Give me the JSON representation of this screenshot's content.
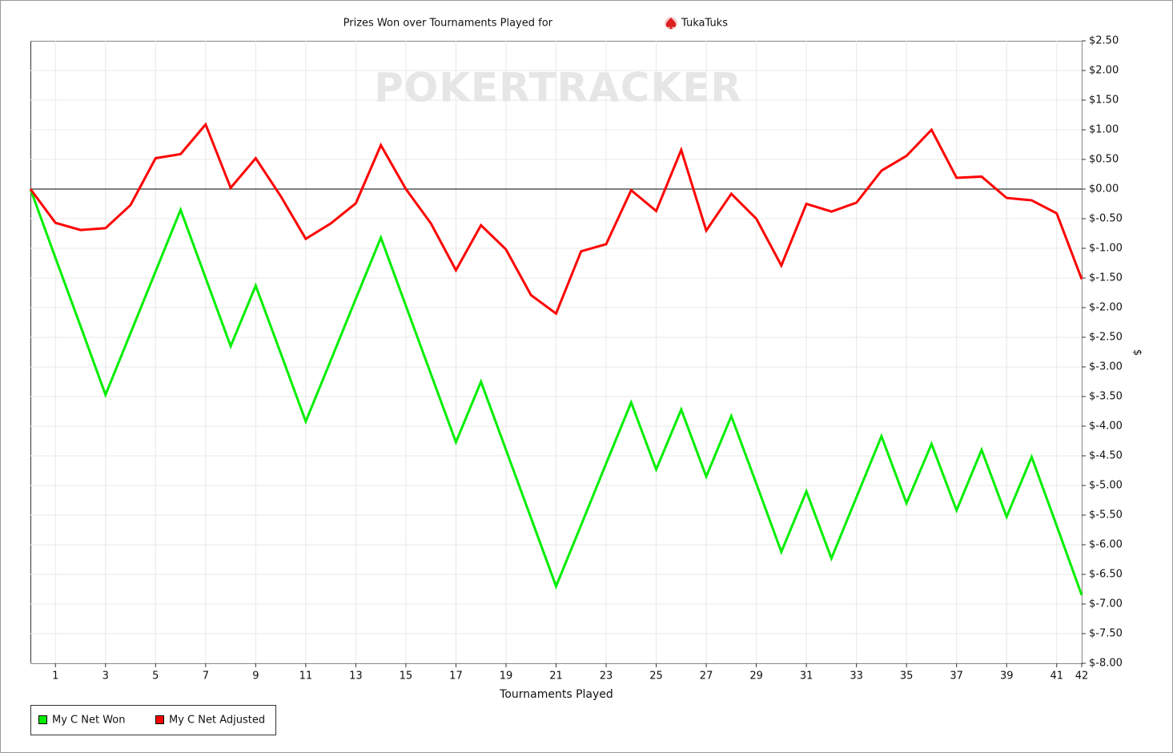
{
  "chart_data": {
    "type": "line",
    "title": "Prizes Won over Tournaments Played for",
    "player": "TukaTuks",
    "watermark": "POKERTRACKER",
    "x_label": "Tournaments Played",
    "y_label": "$",
    "x": [
      0,
      1,
      2,
      3,
      4,
      5,
      6,
      7,
      8,
      9,
      10,
      11,
      12,
      13,
      14,
      15,
      16,
      17,
      18,
      19,
      20,
      21,
      22,
      23,
      24,
      25,
      26,
      27,
      28,
      29,
      30,
      31,
      32,
      33,
      34,
      35,
      36,
      37,
      38,
      39,
      40,
      41,
      42
    ],
    "series": [
      {
        "name": "My C Net Won",
        "color": "#00ee00",
        "values": [
          0,
          -1.16,
          -2.31,
          -3.47,
          -2.43,
          -1.39,
          -0.35,
          -1.5,
          -2.65,
          -1.63,
          -2.77,
          -3.92,
          -2.89,
          -1.85,
          -0.82,
          -1.97,
          -3.12,
          -4.27,
          -3.25,
          -4.4,
          -5.55,
          -6.7,
          -5.67,
          -4.63,
          -3.6,
          -4.73,
          -3.72,
          -4.85,
          -3.83,
          -4.97,
          -6.12,
          -5.1,
          -6.23,
          -5.2,
          -4.17,
          -5.3,
          -4.3,
          -5.42,
          -4.4,
          -5.53,
          -4.52,
          -5.68,
          -6.85
        ]
      },
      {
        "name": "My C Net Adjusted",
        "color": "#ff0000",
        "values": [
          0,
          -0.57,
          -0.69,
          -0.66,
          -0.27,
          0.52,
          0.59,
          1.09,
          0.02,
          0.52,
          -0.12,
          -0.84,
          -0.58,
          -0.24,
          0.74,
          0,
          -0.58,
          -1.37,
          -0.61,
          -1.02,
          -1.79,
          -2.1,
          -1.05,
          -0.93,
          -0.02,
          -0.37,
          0.66,
          -0.7,
          -0.08,
          -0.5,
          -1.29,
          -0.25,
          -0.38,
          -0.23,
          0.31,
          0.56,
          1.0,
          0.19,
          0.21,
          -0.15,
          -0.19,
          -0.41,
          -1.52
        ]
      }
    ],
    "xlim": [
      0,
      42
    ],
    "xticks": [
      1,
      3,
      5,
      7,
      9,
      11,
      13,
      15,
      17,
      19,
      21,
      23,
      25,
      27,
      29,
      31,
      33,
      35,
      37,
      39,
      41,
      42
    ],
    "ylim": [
      -8,
      2.5
    ],
    "yticks": [
      {
        "value": 2.5,
        "label": "$2.50"
      },
      {
        "value": 2,
        "label": "$2.00"
      },
      {
        "value": 1.5,
        "label": "$1.50"
      },
      {
        "value": 1,
        "label": "$1.00"
      },
      {
        "value": 0.5,
        "label": "$0.50"
      },
      {
        "value": 0,
        "label": "$0.00"
      },
      {
        "value": -0.5,
        "label": "$-0.50"
      },
      {
        "value": -1,
        "label": "$-1.00"
      },
      {
        "value": -1.5,
        "label": "$-1.50"
      },
      {
        "value": -2,
        "label": "$-2.00"
      },
      {
        "value": -2.5,
        "label": "$-2.50"
      },
      {
        "value": -3,
        "label": "$-3.00"
      },
      {
        "value": -3.5,
        "label": "$-3.50"
      },
      {
        "value": -4,
        "label": "$-4.00"
      },
      {
        "value": -4.5,
        "label": "$-4.50"
      },
      {
        "value": -5,
        "label": "$-5.00"
      },
      {
        "value": -5.5,
        "label": "$-5.50"
      },
      {
        "value": -6,
        "label": "$-6.00"
      },
      {
        "value": -6.5,
        "label": "$-6.50"
      },
      {
        "value": -7,
        "label": "$-7.00"
      },
      {
        "value": -7.5,
        "label": "$-7.50"
      },
      {
        "value": -8,
        "label": "$-8.00"
      }
    ],
    "grid": true,
    "legend": "bottom-left"
  }
}
